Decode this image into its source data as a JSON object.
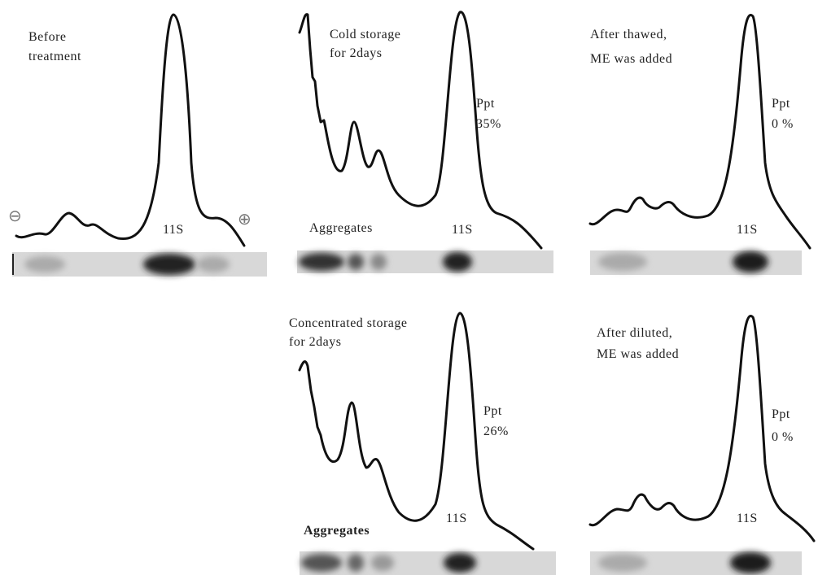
{
  "panels": [
    {
      "title": [
        "Before",
        "treatment"
      ],
      "peak_label": "11S",
      "minus": "⊖",
      "plus": "⊕"
    },
    {
      "title": [
        "Cold storage",
        "for 2days"
      ],
      "ppt": [
        "Ppt",
        "35%"
      ],
      "aggregates": "Aggregates",
      "peak_label": "11S"
    },
    {
      "title": [
        "After thawed,",
        "ME was added"
      ],
      "ppt": [
        "Ppt",
        "0 %"
      ],
      "peak_label": "11S"
    },
    {
      "title": [
        "Concentrated storage",
        "for 2days"
      ],
      "ppt": [
        "Ppt",
        "26%"
      ],
      "aggregates": "Aggregates",
      "peak_label": "11S"
    },
    {
      "title": [
        "After diluted,",
        "ME was added"
      ],
      "ppt": [
        "Ppt",
        "0 %"
      ],
      "peak_label": "11S"
    }
  ]
}
